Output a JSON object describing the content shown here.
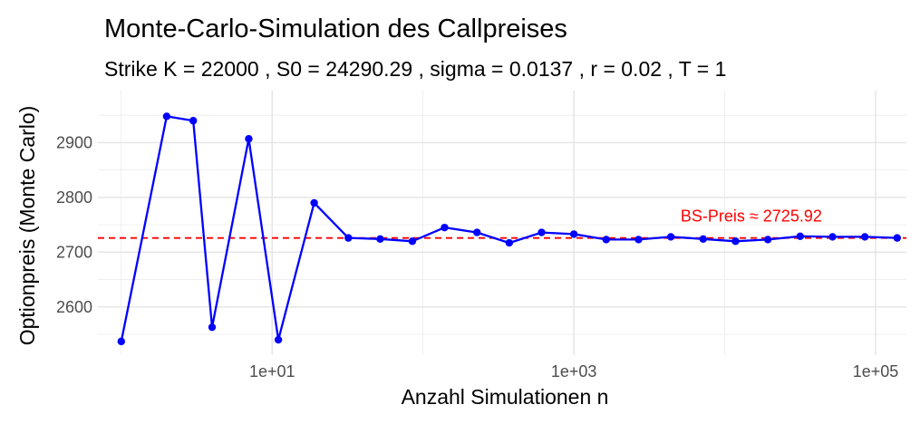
{
  "chart_data": {
    "type": "line",
    "title": "Monte-Carlo-Simulation des Callpreises",
    "subtitle": "Strike K = 22000 , S0 = 24290.29 , sigma = 0.0137 , r = 0.02 , T = 1",
    "xlabel": "Anzahl Simulationen n",
    "ylabel": "Optionpreis (Monte Carlo)",
    "x_scale": "log10",
    "xlim": [
      0.7,
      160000
    ],
    "ylim": [
      2512,
      2995
    ],
    "x_ticks": [
      {
        "value": 10,
        "label": "1e+01"
      },
      {
        "value": 1000,
        "label": "1e+03"
      },
      {
        "value": 100000,
        "label": "1e+05"
      }
    ],
    "y_ticks": [
      {
        "value": 2600,
        "label": "2600"
      },
      {
        "value": 2700,
        "label": "2700"
      },
      {
        "value": 2800,
        "label": "2800"
      },
      {
        "value": 2900,
        "label": "2900"
      }
    ],
    "grid": true,
    "series": [
      {
        "color": "#0000ff",
        "x": [
          1,
          2,
          3,
          4,
          7,
          11,
          19,
          32,
          52,
          85,
          139,
          228,
          373,
          611,
          1000,
          1637,
          2683,
          4394,
          7197,
          11788,
          19307,
          31623,
          51795,
          84834,
          138950
        ],
        "y": [
          2537,
          2948,
          2940,
          2563,
          2907,
          2540,
          2790,
          2726,
          2724,
          2720,
          2745,
          2736,
          2717,
          2736,
          2733,
          2723,
          2723,
          2728,
          2724,
          2720,
          2723,
          2729,
          2728,
          2728,
          2726
        ]
      }
    ],
    "reference_line": {
      "y": 2725.92,
      "color": "#ff0000",
      "style": "dashed",
      "label": "BS-Preis ≈ 2725.92"
    }
  }
}
